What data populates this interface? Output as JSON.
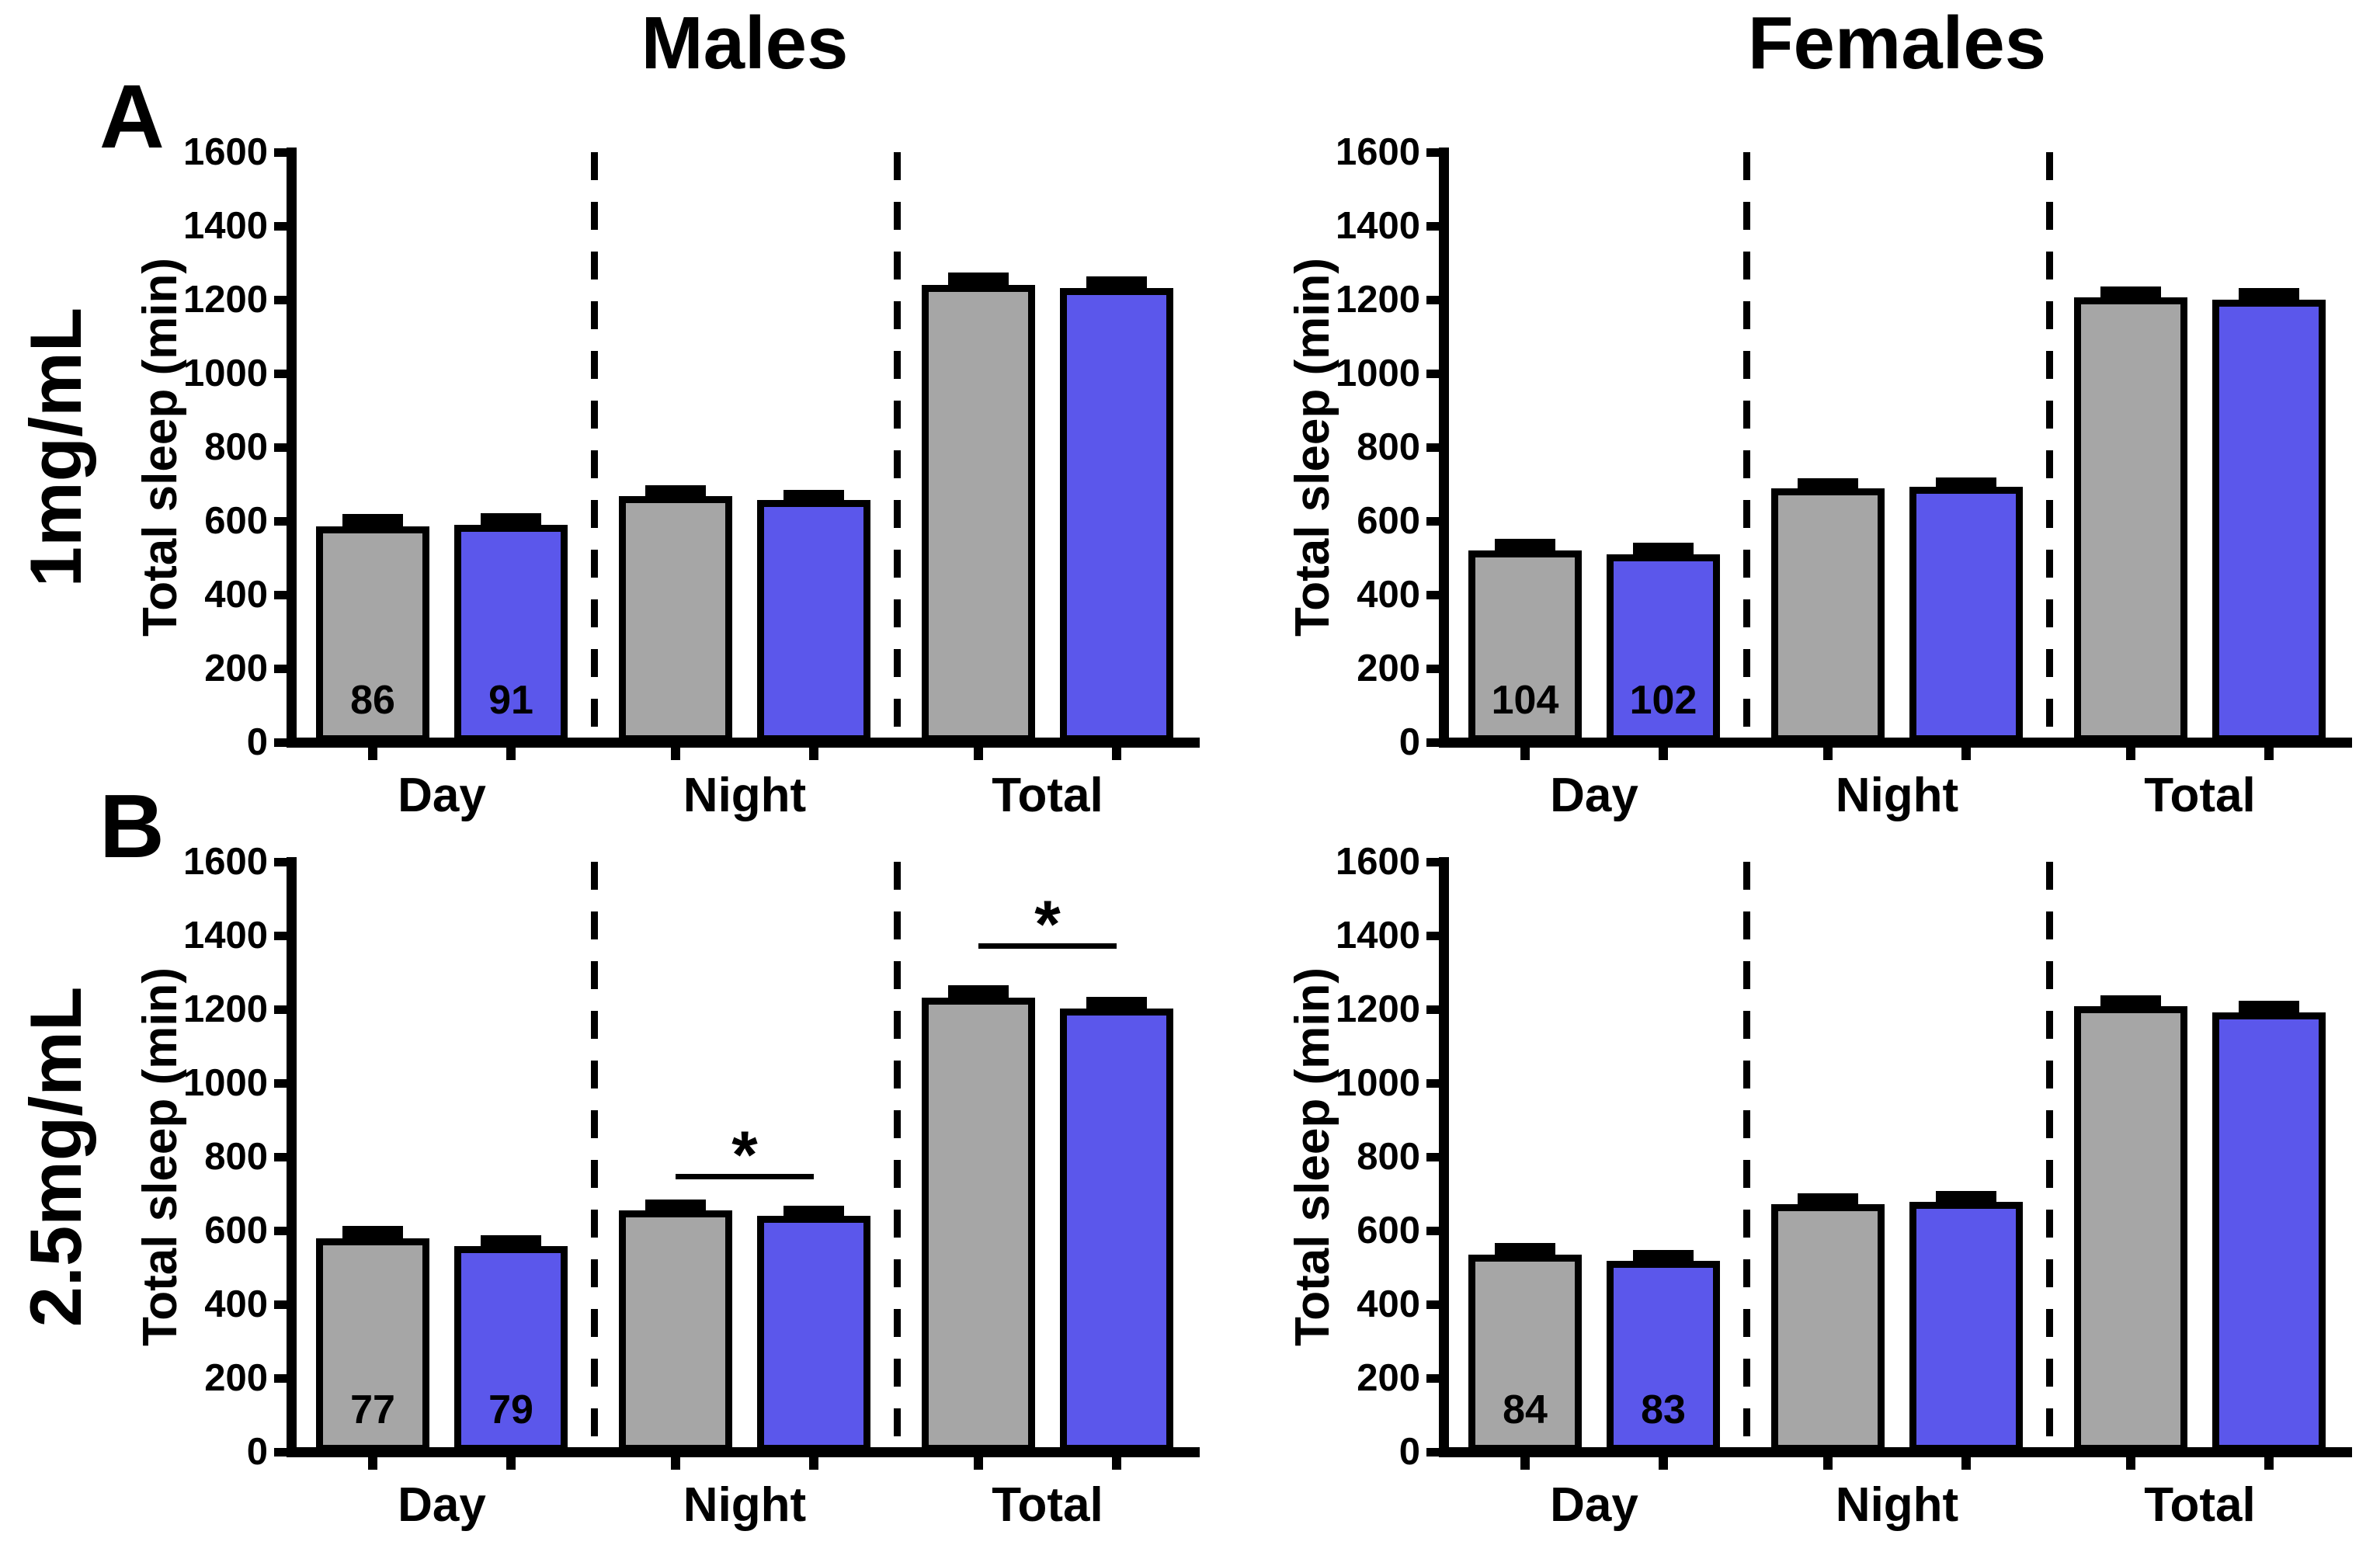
{
  "figure": {
    "columns": [
      {
        "title": "Males"
      },
      {
        "title": "Females"
      }
    ],
    "rows": [
      {
        "letter": "A",
        "label": "1mg/mL"
      },
      {
        "letter": "B",
        "label": "2.5mg/mL"
      }
    ],
    "colors": {
      "gray_bar": "#A6A6A6",
      "blue_bar": "#5B57EB",
      "axis": "#000000",
      "background": "#FFFFFF"
    },
    "significance_symbol": "*"
  },
  "chart_data": [
    {
      "type": "bar",
      "row": 0,
      "col": 0,
      "row_label": "1mg/mL",
      "col_title": "Males",
      "ylabel": "Total sleep (min)",
      "ylim": [
        0,
        1600
      ],
      "yticks": [
        0,
        200,
        400,
        600,
        800,
        1000,
        1200,
        1400,
        1600
      ],
      "categories": [
        "Day",
        "Night",
        "Total"
      ],
      "grid": false,
      "legend": "none",
      "series": [
        {
          "name": "gray-bars",
          "color_key": "gray_bar",
          "values": [
            585,
            668,
            1240
          ],
          "errors": [
            18,
            12,
            16
          ]
        },
        {
          "name": "blue-bars",
          "color_key": "blue_bar",
          "values": [
            590,
            656,
            1232
          ],
          "errors": [
            15,
            12,
            14
          ]
        }
      ],
      "day_bar_labels": [
        "86",
        "91"
      ],
      "significance": []
    },
    {
      "type": "bar",
      "row": 0,
      "col": 1,
      "row_label": "1mg/mL",
      "col_title": "Females",
      "ylabel": "Total sleep (min)",
      "ylim": [
        0,
        1600
      ],
      "yticks": [
        0,
        200,
        400,
        600,
        800,
        1000,
        1200,
        1400,
        1600
      ],
      "categories": [
        "Day",
        "Night",
        "Total"
      ],
      "grid": false,
      "legend": "none",
      "series": [
        {
          "name": "gray-bars",
          "color_key": "gray_bar",
          "values": [
            520,
            688,
            1206
          ],
          "errors": [
            15,
            10,
            14
          ]
        },
        {
          "name": "blue-bars",
          "color_key": "blue_bar",
          "values": [
            510,
            692,
            1200
          ],
          "errors": [
            15,
            10,
            14
          ]
        }
      ],
      "day_bar_labels": [
        "104",
        "102"
      ],
      "significance": []
    },
    {
      "type": "bar",
      "row": 1,
      "col": 0,
      "row_label": "2.5mg/mL",
      "col_title": "Males",
      "ylabel": "Total sleep (min)",
      "ylim": [
        0,
        1600
      ],
      "yticks": [
        0,
        200,
        400,
        600,
        800,
        1000,
        1200,
        1400,
        1600
      ],
      "categories": [
        "Day",
        "Night",
        "Total"
      ],
      "grid": false,
      "legend": "none",
      "series": [
        {
          "name": "gray-bars",
          "color_key": "gray_bar",
          "values": [
            580,
            655,
            1232
          ],
          "errors": [
            15,
            12,
            16
          ]
        },
        {
          "name": "blue-bars",
          "color_key": "blue_bar",
          "values": [
            558,
            640,
            1202
          ],
          "errors": [
            12,
            10,
            14
          ]
        }
      ],
      "day_bar_labels": [
        "77",
        "79"
      ],
      "significance": [
        {
          "category": "Night",
          "symbol": "*",
          "line_y_value": 747
        },
        {
          "category": "Total",
          "symbol": "*",
          "line_y_value": 1372
        }
      ]
    },
    {
      "type": "bar",
      "row": 1,
      "col": 1,
      "row_label": "2.5mg/mL",
      "col_title": "Females",
      "ylabel": "Total sleep (min)",
      "ylim": [
        0,
        1600
      ],
      "yticks": [
        0,
        200,
        400,
        600,
        800,
        1000,
        1200,
        1400,
        1600
      ],
      "categories": [
        "Day",
        "Night",
        "Total"
      ],
      "grid": false,
      "legend": "none",
      "series": [
        {
          "name": "gray-bars",
          "color_key": "gray_bar",
          "values": [
            535,
            672,
            1208
          ],
          "errors": [
            15,
            12,
            14
          ]
        },
        {
          "name": "blue-bars",
          "color_key": "blue_bar",
          "values": [
            518,
            678,
            1192
          ],
          "errors": [
            12,
            12,
            14
          ]
        }
      ],
      "day_bar_labels": [
        "84",
        "83"
      ],
      "significance": []
    }
  ]
}
